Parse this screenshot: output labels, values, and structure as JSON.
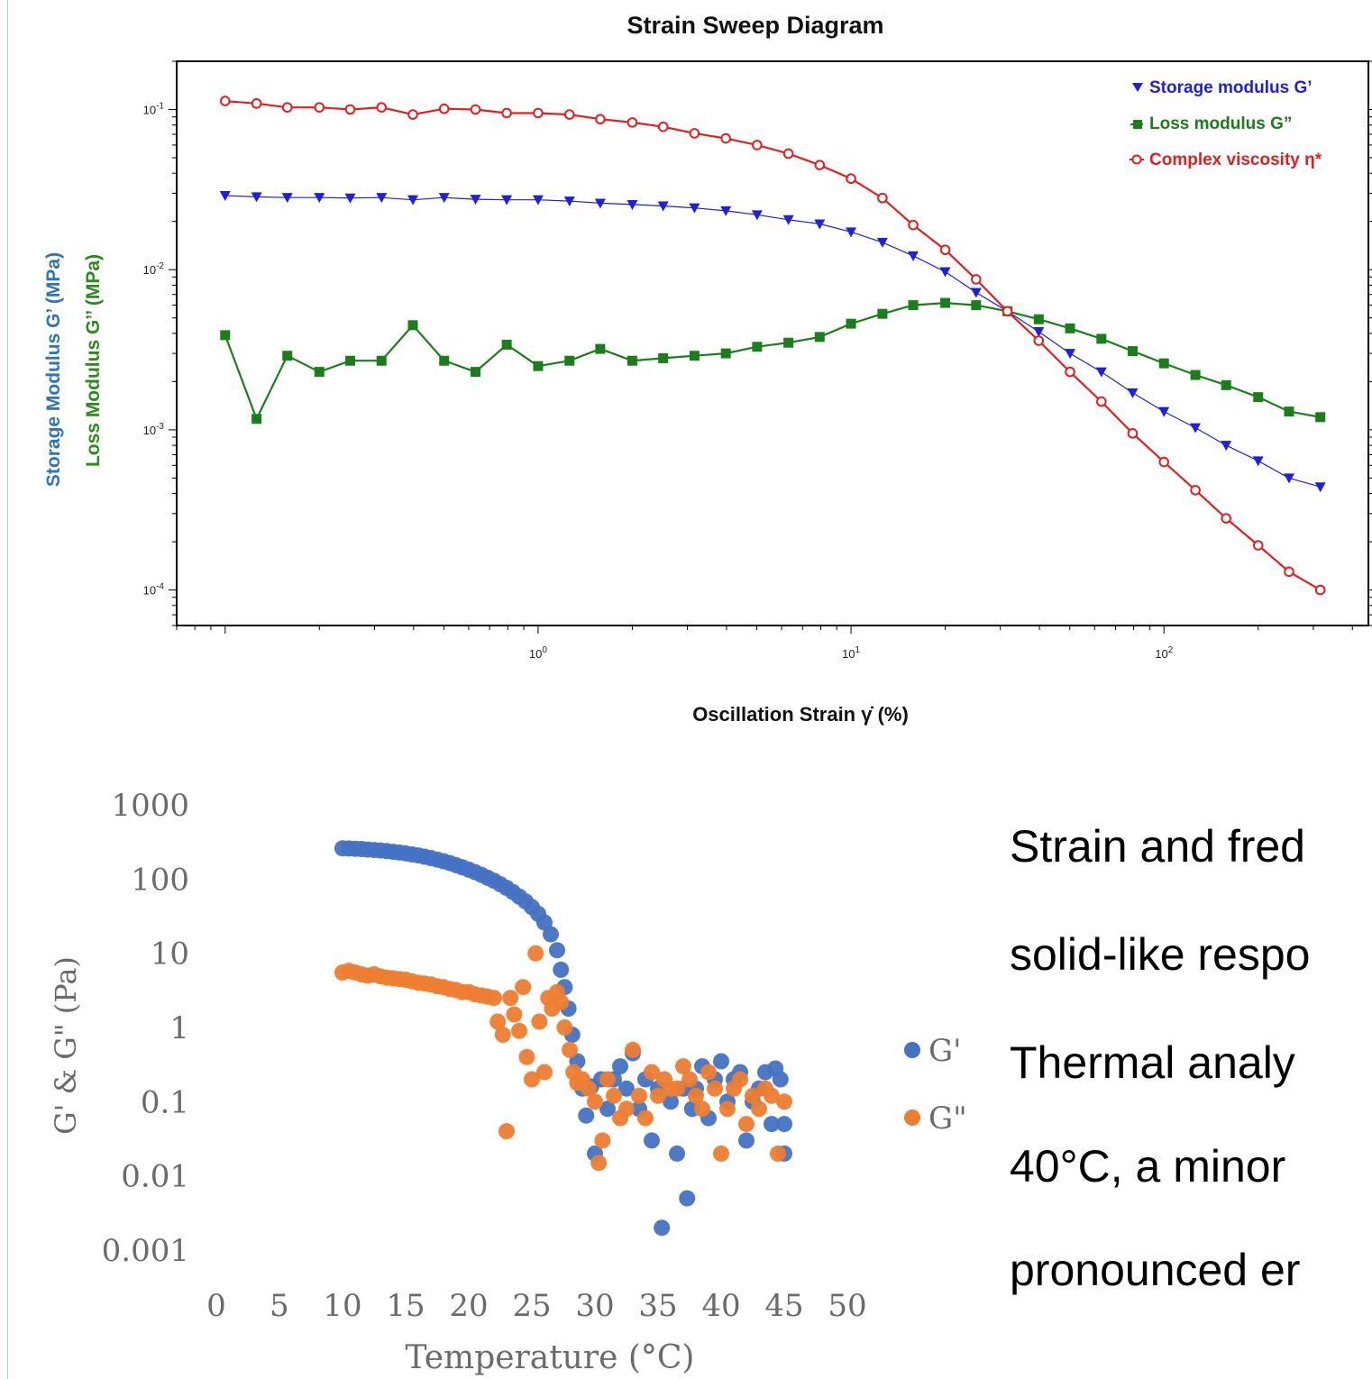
{
  "colors": {
    "storage": "#1f1fe0",
    "loss": "#1a7f1a",
    "complex": "#e01f1f",
    "g_prime": "#4472c4",
    "g_double": "#ed7d31",
    "ylabel_blue": "#2e75b6",
    "ylabel_green": "#2e8b1e"
  },
  "chart_data": [
    {
      "type": "line",
      "title": "Strain Sweep Diagram",
      "xlabel": "Oscillation Strain γ̇ (%)",
      "ylabel": [
        "Storage Modulus G’ (MPa)",
        "Loss Modulus G’’ (MPa)"
      ],
      "xscale": "log",
      "yscale": "log",
      "xlim": [
        0.07,
        450
      ],
      "ylim": [
        6e-05,
        0.2
      ],
      "x_ticks": [
        1,
        10,
        100
      ],
      "x_tick_labels": [
        {
          "base": "10",
          "exp": "0"
        },
        {
          "base": "10",
          "exp": "1"
        },
        {
          "base": "10",
          "exp": "2"
        }
      ],
      "y_ticks": [
        0.1,
        0.01,
        0.001,
        0.0001
      ],
      "y_tick_labels": [
        {
          "base": "10",
          "exp": "-1"
        },
        {
          "base": "10",
          "exp": "-2"
        },
        {
          "base": "10",
          "exp": "-3"
        },
        {
          "base": "10",
          "exp": "-4"
        }
      ],
      "legend_position": "top-right",
      "x": [
        0.1,
        0.126,
        0.158,
        0.2,
        0.251,
        0.316,
        0.398,
        0.501,
        0.631,
        0.794,
        1.0,
        1.26,
        1.58,
        2.0,
        2.51,
        3.16,
        3.98,
        5.01,
        6.31,
        7.94,
        10.0,
        12.6,
        15.8,
        20.0,
        25.1,
        31.6,
        39.8,
        50.1,
        63.1,
        79.4,
        100,
        126,
        158,
        200,
        251,
        316
      ],
      "series": [
        {
          "name": "Storage modulus G’",
          "marker": "triangle-down",
          "color": "#1f1fe0",
          "values": [
            0.029,
            0.0285,
            0.0282,
            0.0282,
            0.028,
            0.0282,
            0.0273,
            0.0282,
            0.0275,
            0.0273,
            0.0273,
            0.0268,
            0.026,
            0.0255,
            0.025,
            0.0243,
            0.0233,
            0.022,
            0.0205,
            0.0193,
            0.0172,
            0.0148,
            0.0122,
            0.0097,
            0.0072,
            0.0055,
            0.0041,
            0.003,
            0.0023,
            0.0017,
            0.0013,
            0.00103,
            0.0008,
            0.00064,
            0.0005,
            0.00044
          ]
        },
        {
          "name": "Loss modulus G”",
          "marker": "square",
          "color": "#1a7f1a",
          "values": [
            0.0039,
            0.00117,
            0.0029,
            0.0023,
            0.0027,
            0.0027,
            0.0045,
            0.0027,
            0.0023,
            0.0034,
            0.0025,
            0.0027,
            0.0032,
            0.0027,
            0.0028,
            0.0029,
            0.003,
            0.0033,
            0.0035,
            0.0038,
            0.0046,
            0.0053,
            0.006,
            0.0062,
            0.006,
            0.0055,
            0.0049,
            0.0043,
            0.0037,
            0.0031,
            0.0026,
            0.0022,
            0.0019,
            0.0016,
            0.0013,
            0.0012
          ]
        },
        {
          "name": "Complex viscosity η*",
          "marker": "circle-open",
          "color": "#e01f1f",
          "values": [
            0.113,
            0.109,
            0.103,
            0.103,
            0.1,
            0.103,
            0.093,
            0.101,
            0.1,
            0.095,
            0.095,
            0.093,
            0.087,
            0.083,
            0.078,
            0.071,
            0.066,
            0.06,
            0.053,
            0.045,
            0.037,
            0.028,
            0.019,
            0.0133,
            0.0087,
            0.0055,
            0.0036,
            0.0023,
            0.0015,
            0.00095,
            0.00063,
            0.00042,
            0.00028,
            0.00019,
            0.00013,
            0.0001
          ]
        }
      ]
    },
    {
      "type": "scatter",
      "xlabel": "Temperature (°C)",
      "ylabel": "G' & G\" (Pa)",
      "yscale": "log",
      "xlim": [
        0,
        50
      ],
      "ylim": [
        0.001,
        1000
      ],
      "x_ticks": [
        "0",
        "5",
        "10",
        "15",
        "20",
        "25",
        "30",
        "35",
        "40",
        "45",
        "50"
      ],
      "y_ticks": [
        "1000",
        "100",
        "10",
        "1",
        "0.1",
        "0.01",
        "0.001"
      ],
      "legend_position": "right",
      "series": [
        {
          "name": "G'",
          "color": "#4472c4",
          "points": [
            [
              10,
              260
            ],
            [
              10.5,
              258
            ],
            [
              11,
              256
            ],
            [
              11.5,
              254
            ],
            [
              12,
              250
            ],
            [
              12.5,
              246
            ],
            [
              13,
              243
            ],
            [
              13.5,
              238
            ],
            [
              14,
              233
            ],
            [
              14.5,
              228
            ],
            [
              15,
              222
            ],
            [
              15.5,
              215
            ],
            [
              16,
              208
            ],
            [
              16.5,
              200
            ],
            [
              17,
              192
            ],
            [
              17.5,
              183
            ],
            [
              18,
              174
            ],
            [
              18.5,
              164
            ],
            [
              19,
              154
            ],
            [
              19.5,
              144
            ],
            [
              20,
              134
            ],
            [
              20.5,
              124
            ],
            [
              21,
              114
            ],
            [
              21.5,
              104
            ],
            [
              22,
              95
            ],
            [
              22.5,
              85
            ],
            [
              23,
              76
            ],
            [
              23.5,
              67
            ],
            [
              24,
              58
            ],
            [
              24.5,
              50
            ],
            [
              25,
              42
            ],
            [
              25.5,
              34
            ],
            [
              26,
              26
            ],
            [
              26.5,
              18
            ],
            [
              27,
              11
            ],
            [
              27.3,
              6
            ],
            [
              27.6,
              3.5
            ],
            [
              27.9,
              1.8
            ],
            [
              28.2,
              0.8
            ],
            [
              28.6,
              0.35
            ],
            [
              29,
              0.15
            ],
            [
              29.3,
              0.065
            ],
            [
              29.7,
              0.16
            ],
            [
              30,
              0.02
            ],
            [
              30.5,
              0.2
            ],
            [
              31,
              0.08
            ],
            [
              31.5,
              0.2
            ],
            [
              32,
              0.3
            ],
            [
              32.5,
              0.15
            ],
            [
              33,
              0.45
            ],
            [
              33.5,
              0.08
            ],
            [
              34,
              0.2
            ],
            [
              34.5,
              0.03
            ],
            [
              35,
              0.15
            ],
            [
              35.3,
              0.002
            ],
            [
              36,
              0.1
            ],
            [
              36.5,
              0.02
            ],
            [
              37,
              0.15
            ],
            [
              37.3,
              0.005
            ],
            [
              37.7,
              0.08
            ],
            [
              38,
              0.15
            ],
            [
              38.5,
              0.3
            ],
            [
              39,
              0.06
            ],
            [
              39.5,
              0.2
            ],
            [
              40,
              0.35
            ],
            [
              40.5,
              0.1
            ],
            [
              41,
              0.2
            ],
            [
              41.5,
              0.25
            ],
            [
              42,
              0.03
            ],
            [
              42.5,
              0.1
            ],
            [
              43,
              0.15
            ],
            [
              43.5,
              0.25
            ],
            [
              44,
              0.05
            ],
            [
              44.3,
              0.28
            ],
            [
              44.7,
              0.2
            ],
            [
              45,
              0.05
            ],
            [
              45,
              0.02
            ]
          ]
        },
        {
          "name": "G\"",
          "color": "#ed7d31",
          "points": [
            [
              10,
              5.5
            ],
            [
              10.5,
              5.8
            ],
            [
              11,
              5.5
            ],
            [
              11.5,
              5.2
            ],
            [
              12,
              5.0
            ],
            [
              12.5,
              5.2
            ],
            [
              13,
              4.9
            ],
            [
              13.5,
              4.7
            ],
            [
              14,
              4.6
            ],
            [
              14.5,
              4.5
            ],
            [
              15,
              4.4
            ],
            [
              15.5,
              4.2
            ],
            [
              16,
              4.0
            ],
            [
              16.5,
              3.9
            ],
            [
              17,
              3.8
            ],
            [
              17.5,
              3.6
            ],
            [
              18,
              3.5
            ],
            [
              18.5,
              3.3
            ],
            [
              19,
              3.2
            ],
            [
              19.5,
              3.0
            ],
            [
              20,
              3.0
            ],
            [
              20.5,
              2.8
            ],
            [
              21,
              2.7
            ],
            [
              21.5,
              2.6
            ],
            [
              22,
              2.5
            ],
            [
              22.3,
              1.2
            ],
            [
              22.7,
              0.8
            ],
            [
              23,
              0.04
            ],
            [
              23.3,
              2.5
            ],
            [
              23.6,
              1.5
            ],
            [
              24,
              0.9
            ],
            [
              24.3,
              3.5
            ],
            [
              24.6,
              0.4
            ],
            [
              25,
              0.2
            ],
            [
              25.3,
              10
            ],
            [
              25.6,
              1.2
            ],
            [
              26,
              0.25
            ],
            [
              26.3,
              2.5
            ],
            [
              26.6,
              1.8
            ],
            [
              27,
              3.0
            ],
            [
              27.3,
              2.2
            ],
            [
              27.6,
              1.0
            ],
            [
              28,
              0.5
            ],
            [
              28.3,
              0.25
            ],
            [
              28.6,
              0.18
            ],
            [
              29,
              0.2
            ],
            [
              29.5,
              0.15
            ],
            [
              30,
              0.1
            ],
            [
              30.3,
              0.015
            ],
            [
              30.6,
              0.03
            ],
            [
              31,
              0.2
            ],
            [
              31.5,
              0.12
            ],
            [
              32,
              0.06
            ],
            [
              32.5,
              0.08
            ],
            [
              33,
              0.5
            ],
            [
              33.5,
              0.12
            ],
            [
              34,
              0.06
            ],
            [
              34.5,
              0.25
            ],
            [
              35,
              0.12
            ],
            [
              35.5,
              0.2
            ],
            [
              36,
              0.15
            ],
            [
              36.5,
              0.15
            ],
            [
              37,
              0.3
            ],
            [
              37.5,
              0.2
            ],
            [
              38,
              0.12
            ],
            [
              38.5,
              0.08
            ],
            [
              39,
              0.25
            ],
            [
              39.5,
              0.15
            ],
            [
              40,
              0.02
            ],
            [
              40.5,
              0.08
            ],
            [
              41,
              0.15
            ],
            [
              41.5,
              0.2
            ],
            [
              42,
              0.05
            ],
            [
              42.5,
              0.12
            ],
            [
              43,
              0.08
            ],
            [
              43.5,
              0.15
            ],
            [
              44,
              0.12
            ],
            [
              44.5,
              0.02
            ],
            [
              45,
              0.1
            ]
          ]
        }
      ]
    }
  ],
  "body_text": [
    "Strain and fred",
    "solid-like respo",
    "Thermal  analy",
    "40°C, a minor",
    "pronounced er"
  ]
}
